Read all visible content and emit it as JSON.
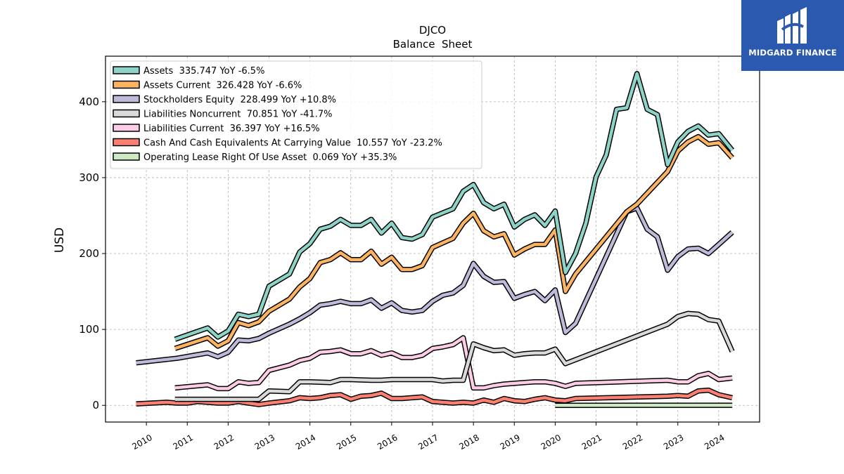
{
  "chart_data": {
    "type": "line",
    "title": "DJCO",
    "subtitle": "Balance  Sheet",
    "ylabel": "USD",
    "xlabel": "",
    "xlim": [
      2009.0,
      2025.0
    ],
    "ylim": [
      -22,
      460
    ],
    "yticks": [
      0,
      100,
      200,
      300,
      400
    ],
    "xticks": [
      "2010",
      "2011",
      "2012",
      "2013",
      "2014",
      "2015",
      "2016",
      "2017",
      "2018",
      "2019",
      "2020",
      "2021",
      "2022",
      "2023",
      "2024"
    ],
    "grid": true,
    "legend_position": "top-left",
    "series": [
      {
        "name": "Assets  335.747 YoY -6.5%",
        "color": "#8dd3c7",
        "points": [
          [
            2010.7,
            87
          ],
          [
            2011.5,
            102
          ],
          [
            2011.75,
            90
          ],
          [
            2012.0,
            98
          ],
          [
            2012.25,
            120
          ],
          [
            2012.5,
            117
          ],
          [
            2012.75,
            120
          ],
          [
            2013.0,
            157
          ],
          [
            2013.5,
            173
          ],
          [
            2013.75,
            202
          ],
          [
            2014.0,
            213
          ],
          [
            2014.25,
            232
          ],
          [
            2014.5,
            236
          ],
          [
            2014.75,
            245
          ],
          [
            2015.0,
            237
          ],
          [
            2015.25,
            237
          ],
          [
            2015.5,
            245
          ],
          [
            2015.75,
            227
          ],
          [
            2016.0,
            240
          ],
          [
            2016.25,
            221
          ],
          [
            2016.5,
            219
          ],
          [
            2016.75,
            225
          ],
          [
            2017.0,
            248
          ],
          [
            2017.5,
            259
          ],
          [
            2017.75,
            282
          ],
          [
            2018.0,
            291
          ],
          [
            2018.25,
            267
          ],
          [
            2018.5,
            259
          ],
          [
            2018.75,
            265
          ],
          [
            2019.0,
            235
          ],
          [
            2019.25,
            245
          ],
          [
            2019.5,
            251
          ],
          [
            2019.75,
            237
          ],
          [
            2020.0,
            256
          ],
          [
            2020.25,
            175
          ],
          [
            2020.5,
            200
          ],
          [
            2020.75,
            240
          ],
          [
            2021.0,
            301
          ],
          [
            2021.25,
            330
          ],
          [
            2021.5,
            390
          ],
          [
            2021.75,
            392
          ],
          [
            2022.0,
            437
          ],
          [
            2022.25,
            390
          ],
          [
            2022.5,
            383
          ],
          [
            2022.75,
            317
          ],
          [
            2023.0,
            347
          ],
          [
            2023.25,
            361
          ],
          [
            2023.5,
            368
          ],
          [
            2023.75,
            356
          ],
          [
            2024.0,
            358
          ],
          [
            2024.33,
            336
          ]
        ]
      },
      {
        "name": "Assets Current  326.428 YoY -6.6%",
        "color": "#fdb462",
        "points": [
          [
            2010.7,
            75
          ],
          [
            2011.5,
            89
          ],
          [
            2011.75,
            78
          ],
          [
            2012.0,
            85
          ],
          [
            2012.25,
            109
          ],
          [
            2012.5,
            105
          ],
          [
            2012.75,
            110
          ],
          [
            2013.0,
            124
          ],
          [
            2013.5,
            140
          ],
          [
            2013.75,
            156
          ],
          [
            2014.0,
            167
          ],
          [
            2014.25,
            188
          ],
          [
            2014.5,
            192
          ],
          [
            2014.75,
            201
          ],
          [
            2015.0,
            192
          ],
          [
            2015.25,
            192
          ],
          [
            2015.5,
            203
          ],
          [
            2015.75,
            186
          ],
          [
            2016.0,
            195
          ],
          [
            2016.25,
            179
          ],
          [
            2016.5,
            179
          ],
          [
            2016.75,
            184
          ],
          [
            2017.0,
            208
          ],
          [
            2017.5,
            220
          ],
          [
            2017.75,
            240
          ],
          [
            2018.0,
            253
          ],
          [
            2018.25,
            230
          ],
          [
            2018.5,
            222
          ],
          [
            2018.75,
            226
          ],
          [
            2019.0,
            198
          ],
          [
            2019.25,
            206
          ],
          [
            2019.5,
            212
          ],
          [
            2019.75,
            212
          ],
          [
            2020.0,
            231
          ],
          [
            2020.25,
            150
          ],
          [
            2020.5,
            173
          ],
          [
            2021.75,
            255
          ],
          [
            2022.0,
            265
          ],
          [
            2022.75,
            308
          ],
          [
            2023.0,
            335
          ],
          [
            2023.25,
            347
          ],
          [
            2023.5,
            354
          ],
          [
            2023.75,
            344
          ],
          [
            2024.0,
            346
          ],
          [
            2024.33,
            326
          ]
        ]
      },
      {
        "name": "Stockholders Equity  228.499 YoY +10.8%",
        "color": "#bebada",
        "points": [
          [
            2009.75,
            56
          ],
          [
            2010.75,
            62
          ],
          [
            2011.5,
            69
          ],
          [
            2011.75,
            64
          ],
          [
            2012.0,
            70
          ],
          [
            2012.25,
            86
          ],
          [
            2012.5,
            85
          ],
          [
            2012.75,
            88
          ],
          [
            2013.0,
            95
          ],
          [
            2013.5,
            107
          ],
          [
            2013.75,
            114
          ],
          [
            2014.0,
            122
          ],
          [
            2014.25,
            132
          ],
          [
            2014.5,
            134
          ],
          [
            2014.75,
            137
          ],
          [
            2015.0,
            134
          ],
          [
            2015.25,
            134
          ],
          [
            2015.5,
            139
          ],
          [
            2015.75,
            128
          ],
          [
            2016.0,
            135
          ],
          [
            2016.25,
            125
          ],
          [
            2016.5,
            123
          ],
          [
            2016.75,
            125
          ],
          [
            2017.0,
            137
          ],
          [
            2017.25,
            145
          ],
          [
            2017.5,
            148
          ],
          [
            2017.75,
            158
          ],
          [
            2018.0,
            187
          ],
          [
            2018.25,
            170
          ],
          [
            2018.5,
            162
          ],
          [
            2018.75,
            163
          ],
          [
            2019.0,
            141
          ],
          [
            2019.25,
            146
          ],
          [
            2019.5,
            150
          ],
          [
            2019.75,
            138
          ],
          [
            2020.0,
            152
          ],
          [
            2020.25,
            96
          ],
          [
            2020.5,
            108
          ],
          [
            2021.75,
            255
          ],
          [
            2022.0,
            260
          ],
          [
            2022.25,
            232
          ],
          [
            2022.5,
            222
          ],
          [
            2022.75,
            178
          ],
          [
            2023.0,
            196
          ],
          [
            2023.25,
            206
          ],
          [
            2023.5,
            207
          ],
          [
            2023.75,
            200
          ],
          [
            2024.0,
            212
          ],
          [
            2024.33,
            228
          ]
        ]
      },
      {
        "name": "Liabilities Noncurrent  70.851 YoY -41.7%",
        "color": "#d9d9d9",
        "points": [
          [
            2010.7,
            8
          ],
          [
            2011.5,
            8
          ],
          [
            2011.75,
            8
          ],
          [
            2012.0,
            8
          ],
          [
            2012.25,
            8
          ],
          [
            2012.5,
            8
          ],
          [
            2012.75,
            8
          ],
          [
            2013.0,
            19
          ],
          [
            2013.5,
            18
          ],
          [
            2013.75,
            31
          ],
          [
            2014.0,
            31
          ],
          [
            2014.5,
            30
          ],
          [
            2014.75,
            34
          ],
          [
            2015.0,
            34
          ],
          [
            2015.5,
            33
          ],
          [
            2015.75,
            33
          ],
          [
            2016.0,
            34
          ],
          [
            2016.5,
            34
          ],
          [
            2016.75,
            34
          ],
          [
            2017.0,
            34
          ],
          [
            2017.25,
            32
          ],
          [
            2017.5,
            33
          ],
          [
            2017.75,
            33
          ],
          [
            2018.0,
            81
          ],
          [
            2018.25,
            76
          ],
          [
            2018.5,
            72
          ],
          [
            2018.75,
            73
          ],
          [
            2019.0,
            66
          ],
          [
            2019.25,
            68
          ],
          [
            2019.5,
            69
          ],
          [
            2019.75,
            69
          ],
          [
            2020.0,
            74
          ],
          [
            2020.25,
            55
          ],
          [
            2022.75,
            107
          ],
          [
            2023.0,
            117
          ],
          [
            2023.25,
            121
          ],
          [
            2023.5,
            120
          ],
          [
            2023.75,
            113
          ],
          [
            2024.0,
            111
          ],
          [
            2024.33,
            71
          ]
        ]
      },
      {
        "name": "Liabilities Current  36.397 YoY +16.5%",
        "color": "#fccde5",
        "points": [
          [
            2010.7,
            23
          ],
          [
            2011.5,
            27
          ],
          [
            2011.75,
            22
          ],
          [
            2012.0,
            22
          ],
          [
            2012.25,
            31
          ],
          [
            2012.5,
            29
          ],
          [
            2012.75,
            30
          ],
          [
            2013.0,
            46
          ],
          [
            2013.5,
            53
          ],
          [
            2013.75,
            59
          ],
          [
            2014.0,
            62
          ],
          [
            2014.25,
            70
          ],
          [
            2014.5,
            71
          ],
          [
            2014.75,
            73
          ],
          [
            2015.0,
            68
          ],
          [
            2015.25,
            68
          ],
          [
            2015.5,
            72
          ],
          [
            2015.75,
            66
          ],
          [
            2016.0,
            69
          ],
          [
            2016.25,
            63
          ],
          [
            2016.5,
            63
          ],
          [
            2016.75,
            66
          ],
          [
            2017.0,
            75
          ],
          [
            2017.25,
            77
          ],
          [
            2017.5,
            80
          ],
          [
            2017.75,
            89
          ],
          [
            2018.0,
            23
          ],
          [
            2018.25,
            23
          ],
          [
            2018.5,
            26
          ],
          [
            2018.75,
            28
          ],
          [
            2019.0,
            29
          ],
          [
            2019.25,
            30
          ],
          [
            2019.5,
            31
          ],
          [
            2019.75,
            31
          ],
          [
            2020.0,
            29
          ],
          [
            2020.25,
            25
          ],
          [
            2020.5,
            29
          ],
          [
            2022.75,
            33
          ],
          [
            2023.0,
            31
          ],
          [
            2023.25,
            31
          ],
          [
            2023.5,
            39
          ],
          [
            2023.75,
            42
          ],
          [
            2024.0,
            34
          ],
          [
            2024.33,
            36
          ]
        ]
      },
      {
        "name": "Cash And Cash Equivalents At Carrying Value  10.557 YoY -23.2%",
        "color": "#fb8072",
        "points": [
          [
            2009.75,
            2
          ],
          [
            2010.5,
            4
          ],
          [
            2010.75,
            3
          ],
          [
            2011.0,
            3
          ],
          [
            2011.25,
            5
          ],
          [
            2011.5,
            4
          ],
          [
            2011.75,
            3
          ],
          [
            2012.0,
            3
          ],
          [
            2012.25,
            5
          ],
          [
            2012.5,
            3
          ],
          [
            2012.75,
            1
          ],
          [
            2013.0,
            3
          ],
          [
            2013.5,
            6
          ],
          [
            2013.75,
            10
          ],
          [
            2014.0,
            9
          ],
          [
            2014.25,
            10
          ],
          [
            2014.5,
            13
          ],
          [
            2014.75,
            14
          ],
          [
            2015.0,
            8
          ],
          [
            2015.25,
            12
          ],
          [
            2015.5,
            13
          ],
          [
            2015.75,
            16
          ],
          [
            2016.0,
            9
          ],
          [
            2016.25,
            9
          ],
          [
            2016.5,
            10
          ],
          [
            2016.75,
            11
          ],
          [
            2017.0,
            5
          ],
          [
            2017.25,
            4
          ],
          [
            2017.5,
            3
          ],
          [
            2017.75,
            4
          ],
          [
            2018.0,
            3
          ],
          [
            2018.25,
            7
          ],
          [
            2018.5,
            4
          ],
          [
            2018.75,
            9
          ],
          [
            2019.0,
            6
          ],
          [
            2019.25,
            5
          ],
          [
            2019.5,
            8
          ],
          [
            2019.75,
            10
          ],
          [
            2020.0,
            7
          ],
          [
            2020.25,
            6
          ],
          [
            2020.5,
            9
          ],
          [
            2022.75,
            12
          ],
          [
            2023.0,
            13
          ],
          [
            2023.25,
            12
          ],
          [
            2023.5,
            19
          ],
          [
            2023.75,
            20
          ],
          [
            2024.0,
            14
          ],
          [
            2024.33,
            10
          ]
        ]
      },
      {
        "name": "Operating Lease Right Of Use Asset  0.069 YoY +35.3%",
        "color": "#ccebc5",
        "points": [
          [
            2020.0,
            0.05
          ],
          [
            2024.33,
            0.069
          ]
        ]
      }
    ]
  },
  "logo": {
    "text": "MIDGARD FINANCE",
    "color": "#2b59b0"
  }
}
